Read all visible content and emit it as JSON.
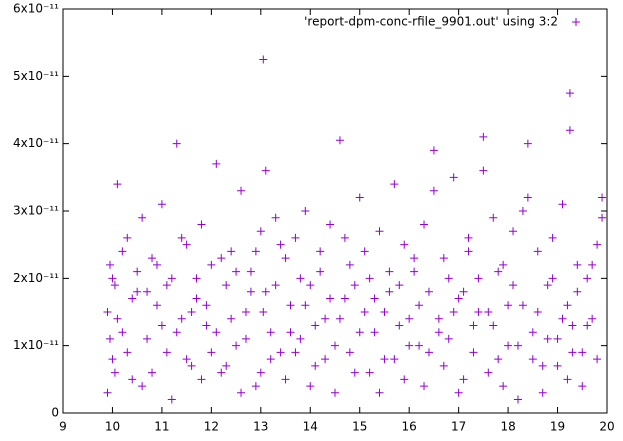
{
  "chart_data": {
    "type": "scatter",
    "xlim": [
      9,
      20
    ],
    "xticks": [
      9,
      10,
      11,
      12,
      13,
      14,
      15,
      16,
      17,
      18,
      19,
      20
    ],
    "ylim": [
      0,
      6e-11
    ],
    "yticks": [
      0,
      {
        "value": 1e-11,
        "label": "1x10⁻¹¹"
      },
      {
        "value": 2e-11,
        "label": "2x10⁻¹¹"
      },
      {
        "value": 3e-11,
        "label": "3x10⁻¹¹"
      },
      {
        "value": 4e-11,
        "label": "4x10⁻¹¹"
      },
      {
        "value": 5e-11,
        "label": "5x10⁻¹¹"
      },
      {
        "value": 6e-11,
        "label": "6x10⁻¹¹"
      }
    ],
    "grid": false,
    "legend": "top-right",
    "series": [
      {
        "name": "'report-dpm-conc-rfile_9901.out' using 3:2",
        "color": "#9400d3",
        "x": [
          9.9,
          9.95,
          10.0,
          10.05,
          10.1,
          10.2,
          10.3,
          10.4,
          10.5,
          10.6,
          10.7,
          10.8,
          10.9,
          11.0,
          11.1,
          11.2,
          11.3,
          11.4,
          11.5,
          11.6,
          11.7,
          11.8,
          11.9,
          12.0,
          12.1,
          12.2,
          12.3,
          12.4,
          12.5,
          12.6,
          12.7,
          12.8,
          12.9,
          13.0,
          13.05,
          13.1,
          13.2,
          13.3,
          13.4,
          13.5,
          13.6,
          13.7,
          13.8,
          13.9,
          14.0,
          14.1,
          14.2,
          14.3,
          14.4,
          14.5,
          14.6,
          14.7,
          14.8,
          14.9,
          15.0,
          15.1,
          15.2,
          15.3,
          15.4,
          15.5,
          15.6,
          15.7,
          15.8,
          15.9,
          16.0,
          16.1,
          16.2,
          16.3,
          16.4,
          16.5,
          16.6,
          16.7,
          16.8,
          16.9,
          17.0,
          17.1,
          17.2,
          17.3,
          17.4,
          17.5,
          17.6,
          17.7,
          17.8,
          17.9,
          18.0,
          18.1,
          18.2,
          18.3,
          18.4,
          18.5,
          18.6,
          18.7,
          18.8,
          18.9,
          19.0,
          19.1,
          19.2,
          19.25,
          19.3,
          19.4,
          19.5,
          19.6,
          19.7,
          19.8,
          19.9,
          9.9,
          9.95,
          10.0,
          10.05,
          10.1,
          10.2,
          10.3,
          10.4,
          10.5,
          10.6,
          10.7,
          10.8,
          10.9,
          11.0,
          11.1,
          11.2,
          11.3,
          11.4,
          11.5,
          11.6,
          11.7,
          11.8,
          11.9,
          12.0,
          12.1,
          12.2,
          12.3,
          12.4,
          12.5,
          12.6,
          12.7,
          12.8,
          12.9,
          13.0,
          13.05,
          13.1,
          13.2,
          13.3,
          13.4,
          13.5,
          13.6,
          13.7,
          13.8,
          13.9,
          14.0,
          14.1,
          14.2,
          14.3,
          14.4,
          14.5,
          14.6,
          14.7,
          14.8,
          14.9,
          15.0,
          15.1,
          15.2,
          15.3,
          15.4,
          15.5,
          15.6,
          15.7,
          15.8,
          15.9,
          16.0,
          16.1,
          16.2,
          16.3,
          16.4,
          16.5,
          16.6,
          16.7,
          16.8,
          16.9,
          17.0,
          17.1,
          17.2,
          17.3,
          17.4,
          17.5,
          17.6,
          17.7,
          17.8,
          17.9,
          18.0,
          18.1,
          18.2,
          18.3,
          18.4,
          18.5,
          18.6,
          18.7,
          18.8,
          18.9,
          19.0,
          19.1,
          19.2,
          19.25,
          19.3,
          19.4,
          19.5,
          19.6,
          19.7,
          19.8,
          19.9
        ],
        "values": [
          1.5e-11,
          2.2e-11,
          8e-12,
          1.9e-11,
          3.4e-11,
          1.2e-11,
          2.6e-11,
          5e-12,
          1.8e-11,
          2.9e-11,
          1.1e-11,
          2.3e-11,
          1.6e-11,
          3.1e-11,
          9e-12,
          2e-11,
          4e-11,
          1.4e-11,
          2.5e-11,
          7e-12,
          1.7e-11,
          2.8e-11,
          1.3e-11,
          2.2e-11,
          3.7e-11,
          6e-12,
          1.9e-11,
          2.4e-11,
          1e-11,
          3.3e-11,
          1.5e-11,
          2.1e-11,
          4e-12,
          2.7e-11,
          5.25e-11,
          1.8e-11,
          1.2e-11,
          2.9e-11,
          9e-12,
          2.3e-11,
          1.6e-11,
          2.6e-11,
          1.1e-11,
          3e-11,
          1.9e-11,
          7e-12,
          2.4e-11,
          1.4e-11,
          2.8e-11,
          1e-11,
          4.05e-11,
          1.7e-11,
          2.2e-11,
          6e-12,
          3.2e-11,
          1.5e-11,
          2e-11,
          1.2e-11,
          2.7e-11,
          8e-12,
          1.8e-11,
          3.4e-11,
          1.3e-11,
          2.5e-11,
          1e-11,
          2.1e-11,
          1.6e-11,
          2.8e-11,
          9e-12,
          3.9e-11,
          1.4e-11,
          2.3e-11,
          1.1e-11,
          3.5e-11,
          1.7e-11,
          5e-12,
          2.6e-11,
          1.3e-11,
          2e-11,
          4.1e-11,
          1.5e-11,
          2.9e-11,
          8e-12,
          2.2e-11,
          1.6e-11,
          2.7e-11,
          1e-11,
          3e-11,
          4e-11,
          1.2e-11,
          2.4e-11,
          7e-12,
          1.9e-11,
          2.6e-11,
          1.1e-11,
          3.1e-11,
          1.6e-11,
          4.75e-11,
          1.3e-11,
          2.2e-11,
          9e-12,
          2e-11,
          1.4e-11,
          2.5e-11,
          3.2e-11,
          3e-12,
          1.1e-11,
          2e-11,
          6e-12,
          1.4e-11,
          2.4e-11,
          9e-12,
          1.7e-11,
          2.1e-11,
          4e-12,
          1.8e-11,
          6e-12,
          2.2e-11,
          1.3e-11,
          1.9e-11,
          2e-12,
          1.2e-11,
          2.6e-11,
          8e-12,
          1.5e-11,
          2e-11,
          5e-12,
          1.6e-11,
          9e-12,
          1.2e-11,
          2.3e-11,
          7e-12,
          1.4e-11,
          2.1e-11,
          3e-12,
          1.1e-11,
          1.8e-11,
          2.4e-11,
          6e-12,
          1.5e-11,
          3.6e-11,
          8e-12,
          1.9e-11,
          2.5e-11,
          5e-12,
          1.2e-11,
          9e-12,
          2e-11,
          1.6e-11,
          4e-12,
          1.3e-11,
          2.1e-11,
          8e-12,
          1.7e-11,
          3e-12,
          1.4e-11,
          2.6e-11,
          9e-12,
          1.9e-11,
          1.2e-11,
          2.4e-11,
          6e-12,
          1.7e-11,
          3e-12,
          1.5e-11,
          2.1e-11,
          8e-12,
          1.9e-11,
          5e-12,
          1.4e-11,
          2.3e-11,
          1e-11,
          4e-12,
          1.8e-11,
          3.3e-11,
          1.2e-11,
          7e-12,
          2e-11,
          1.5e-11,
          3e-12,
          1.8e-11,
          2.4e-11,
          9e-12,
          1.5e-11,
          3.6e-11,
          6e-12,
          1.3e-11,
          2.1e-11,
          4e-12,
          1e-11,
          1.9e-11,
          2e-12,
          1.6e-11,
          3.2e-11,
          8e-12,
          1.5e-11,
          3e-12,
          1.1e-11,
          2e-11,
          7e-12,
          1.4e-11,
          5e-12,
          4.2e-11,
          9e-12,
          1.8e-11,
          4e-12,
          1.3e-11,
          2.2e-11,
          8e-12,
          2.9e-11
        ]
      }
    ]
  }
}
